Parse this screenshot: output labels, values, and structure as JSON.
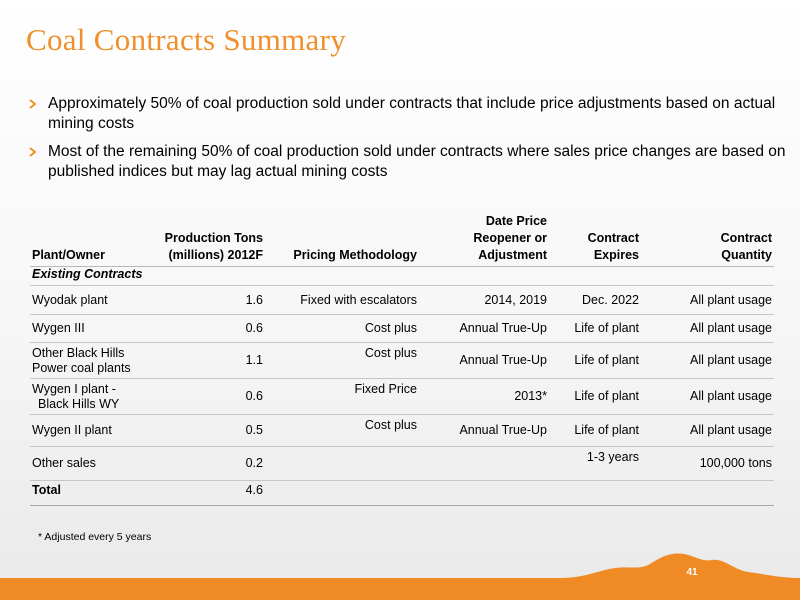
{
  "title": "Coal Contracts Summary",
  "bullets": [
    "Approximately 50% of coal production sold under contracts that include price adjustments based on actual mining costs",
    "Most of the remaining 50% of coal production sold under contracts where sales price changes are based on published indices but may lag actual mining costs"
  ],
  "table": {
    "headers": {
      "plant": "Plant/Owner",
      "tons_line1": "Production Tons",
      "tons_line2": "(millions) 2012F",
      "pricing": "Pricing Methodology",
      "reopener_line1": "Date Price",
      "reopener_line2": "Reopener or",
      "reopener_line3": "Adjustment",
      "expires_line1": "Contract",
      "expires_line2": "Expires",
      "quantity_line1": "Contract",
      "quantity_line2": "Quantity"
    },
    "section_label": "Existing Contracts",
    "rows": [
      {
        "plant_line1": "Wyodak plant",
        "plant_line2": "",
        "tons": "1.6",
        "pricing": "Fixed with escalators",
        "reopener": "2014, 2019",
        "expires": "Dec. 2022",
        "quantity": "All plant usage"
      },
      {
        "plant_line1": "Wygen III",
        "plant_line2": "",
        "tons": "0.6",
        "pricing": "Cost plus",
        "reopener": "Annual True-Up",
        "expires": "Life of plant",
        "quantity": "All plant usage"
      },
      {
        "plant_line1": "Other Black Hills",
        "plant_line2": "Power coal plants",
        "tons": "1.1",
        "pricing": "Cost plus",
        "reopener": "Annual True-Up",
        "expires": "Life of plant",
        "quantity": "All plant usage"
      },
      {
        "plant_line1": "Wygen I plant -",
        "plant_line2": "Black Hills WY",
        "tons": "0.6",
        "pricing": "Fixed Price",
        "reopener": "2013*",
        "expires": "Life of plant",
        "quantity": "All plant usage"
      },
      {
        "plant_line1": "Wygen II plant",
        "plant_line2": "",
        "tons": "0.5",
        "pricing": "Cost plus",
        "reopener": "Annual True-Up",
        "expires": "Life of plant",
        "quantity": "All plant usage"
      },
      {
        "plant_line1": "Other sales",
        "plant_line2": "",
        "tons": "0.2",
        "pricing": "",
        "reopener": "",
        "expires": "1-3 years",
        "quantity": "100,000 tons"
      }
    ],
    "total": {
      "label": "Total",
      "tons": "4.6"
    }
  },
  "footnote": "* Adjusted every 5 years",
  "page_number": "41",
  "colors": {
    "accent": "#f0902a",
    "footer": "#f08a24",
    "text": "#000000"
  },
  "icons": {
    "bullet": "arrow-bullet-icon"
  }
}
